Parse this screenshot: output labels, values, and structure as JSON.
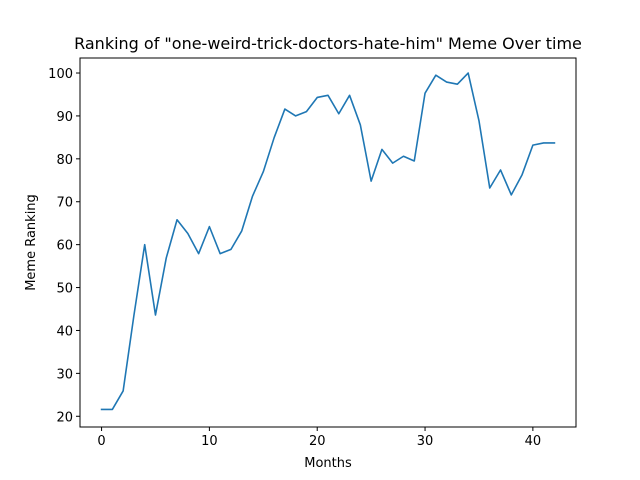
{
  "chart_data": {
    "type": "line",
    "title": "Ranking of \"one-weird-trick-doctors-hate-him\" Meme Over time",
    "xlabel": "Months",
    "ylabel": "Meme Ranking",
    "xlim": [
      -2,
      44
    ],
    "ylim": [
      17.5,
      103.5
    ],
    "xticks": [
      0,
      10,
      20,
      30,
      40
    ],
    "yticks": [
      20,
      30,
      40,
      50,
      60,
      70,
      80,
      90,
      100
    ],
    "grid": false,
    "legend": "none",
    "series": [
      {
        "color": "#1f77b4",
        "x": [
          0,
          1,
          2,
          3,
          4,
          5,
          6,
          7,
          8,
          9,
          10,
          11,
          12,
          13,
          14,
          15,
          16,
          17,
          18,
          19,
          20,
          21,
          22,
          23,
          24,
          25,
          26,
          27,
          28,
          29,
          30,
          31,
          32,
          33,
          34,
          35,
          36,
          37,
          38,
          39,
          40,
          41,
          42
        ],
        "values": [
          21.6,
          21.6,
          25.9,
          43.5,
          60.0,
          43.6,
          56.9,
          65.8,
          62.6,
          57.9,
          64.2,
          57.9,
          58.9,
          63.2,
          71.3,
          77.0,
          84.9,
          91.6,
          90.0,
          91.0,
          94.3,
          94.8,
          90.5,
          94.8,
          87.9,
          74.8,
          82.2,
          79.0,
          80.6,
          79.5,
          95.3,
          99.5,
          97.9,
          97.4,
          100.0,
          88.9,
          73.2,
          77.4,
          71.6,
          76.3,
          83.2,
          83.7,
          83.7
        ]
      }
    ]
  }
}
